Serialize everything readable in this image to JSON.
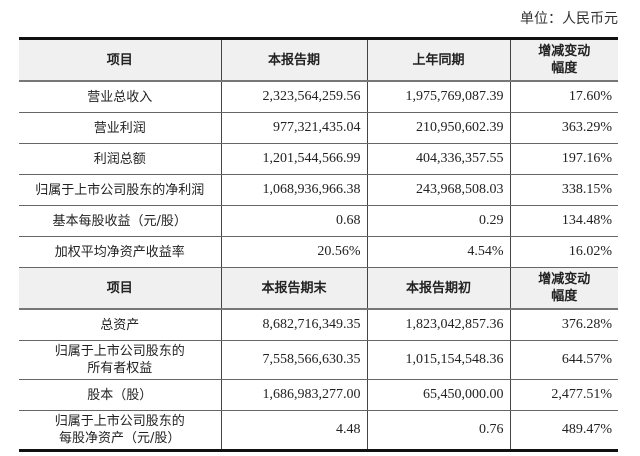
{
  "unit_label": "单位：人民币元",
  "section1": {
    "headers": [
      "项目",
      "本报告期",
      "上年同期",
      "增减变动",
      "幅度"
    ],
    "rows": [
      {
        "item": "营业总收入",
        "current": "2,323,564,259.56",
        "prior": "1,975,769,087.39",
        "change": "17.60%"
      },
      {
        "item": "营业利润",
        "current": "977,321,435.04",
        "prior": "210,950,602.39",
        "change": "363.29%"
      },
      {
        "item": "利润总额",
        "current": "1,201,544,566.99",
        "prior": "404,336,357.55",
        "change": "197.16%"
      },
      {
        "item": "归属于上市公司股东的净利润",
        "current": "1,068,936,966.38",
        "prior": "243,968,508.03",
        "change": "338.15%"
      },
      {
        "item": "基本每股收益（元/股）",
        "current": "0.68",
        "prior": "0.29",
        "change": "134.48%"
      },
      {
        "item": "加权平均净资产收益率",
        "current": "20.56%",
        "prior": "4.54%",
        "change": "16.02%"
      }
    ]
  },
  "section2": {
    "headers": [
      "项目",
      "本报告期末",
      "本报告期初",
      "增减变动",
      "幅度"
    ],
    "rows": [
      {
        "item": "总资产",
        "item2": "",
        "current": "8,682,716,349.35",
        "prior": "1,823,042,857.36",
        "change": "376.28%"
      },
      {
        "item": "归属于上市公司股东的",
        "item2": "所有者权益",
        "current": "7,558,566,630.35",
        "prior": "1,015,154,548.36",
        "change": "644.57%"
      },
      {
        "item": "股本（股）",
        "item2": "",
        "current": "1,686,983,277.00",
        "prior": "65,450,000.00",
        "change": "2,477.51%"
      },
      {
        "item": "归属于上市公司股东的",
        "item2": "每股净资产（元/股）",
        "current": "4.48",
        "prior": "0.76",
        "change": "489.47%"
      }
    ]
  }
}
